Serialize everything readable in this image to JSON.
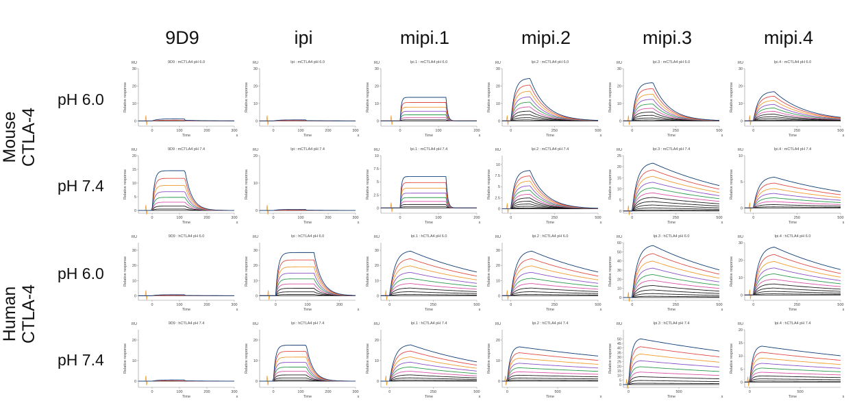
{
  "columns": [
    "9D9",
    "ipi",
    "mipi.1",
    "mipi.2",
    "mipi.3",
    "mipi.4"
  ],
  "groups": [
    {
      "label": "Mouse\nCTLA-4",
      "rows": [
        "pH 6.0",
        "pH 7.4"
      ]
    },
    {
      "label": "Human\nCTLA-4",
      "rows": [
        "pH 6.0",
        "pH 7.4"
      ]
    }
  ],
  "common": {
    "ru_label": "RU",
    "ylabel": "Relative response",
    "xlabel": "Time",
    "xunit": "s"
  },
  "chart_data": [
    {
      "type": "line",
      "title": "9D9 : mCTLA4 pH 6.0",
      "xlim": [
        -50,
        300
      ],
      "xticks": [
        0,
        100,
        200,
        300
      ],
      "ylim": [
        -3,
        30
      ],
      "yticks": [
        0,
        10,
        20,
        30
      ],
      "profile": "flat",
      "amp": 1.2,
      "t_end": 120,
      "n": 2
    },
    {
      "type": "line",
      "title": "Ipi : mCTLA4 pH 6.0",
      "xlim": [
        -50,
        300
      ],
      "xticks": [
        0,
        100,
        200,
        300
      ],
      "ylim": [
        -3,
        30
      ],
      "yticks": [
        0,
        10,
        20,
        30
      ],
      "profile": "flat",
      "amp": 0.6,
      "t_end": 120,
      "n": 2
    },
    {
      "type": "line",
      "title": "Ipi.1 : mCTLA4 pH 6.0",
      "xlim": [
        -50,
        200
      ],
      "xticks": [
        0,
        100,
        200
      ],
      "ylim": [
        -3,
        30
      ],
      "yticks": [
        0,
        10,
        20,
        30
      ],
      "profile": "square",
      "amp": 13.5,
      "t_end": 120,
      "n": 7
    },
    {
      "type": "line",
      "title": "Ipi.2 : mCTLA4 pH 6.0",
      "xlim": [
        -50,
        500
      ],
      "xticks": [
        0,
        250,
        500
      ],
      "ylim": [
        -3,
        30
      ],
      "yticks": [
        0,
        10,
        20,
        30
      ],
      "profile": "fastfall",
      "amp": 24.5,
      "t_end": 110,
      "n": 10
    },
    {
      "type": "line",
      "title": "Ipi.3 : mCTLA4 pH 6.0",
      "xlim": [
        -50,
        500
      ],
      "xticks": [
        0,
        250,
        500
      ],
      "ylim": [
        -3,
        30
      ],
      "yticks": [
        0,
        10,
        20,
        30
      ],
      "profile": "fastfall",
      "amp": 22,
      "t_end": 120,
      "n": 10
    },
    {
      "type": "line",
      "title": "Ipi.4 : mCTLA4 pH 6.0",
      "xlim": [
        -50,
        500
      ],
      "xticks": [
        0,
        250,
        500
      ],
      "ylim": [
        -3,
        30
      ],
      "yticks": [
        0,
        10,
        20,
        30
      ],
      "profile": "medfall",
      "amp": 17,
      "t_end": 120,
      "n": 10
    },
    {
      "type": "line",
      "title": "9D9 : mCTLA4 pH 7.4",
      "xlim": [
        -50,
        300
      ],
      "xticks": [
        0,
        100,
        200,
        300
      ],
      "ylim": [
        -1,
        20
      ],
      "yticks": [
        0,
        5,
        10,
        15,
        20
      ],
      "profile": "square_fall",
      "amp": 14.5,
      "t_end": 120,
      "n": 8
    },
    {
      "type": "line",
      "title": "Ipi : mCTLA4 pH 7.4",
      "xlim": [
        -50,
        300
      ],
      "xticks": [
        0,
        100,
        200,
        300
      ],
      "ylim": [
        -1,
        20
      ],
      "yticks": [
        0,
        10,
        20
      ],
      "profile": "flat",
      "amp": 0.4,
      "t_end": 120,
      "n": 2
    },
    {
      "type": "line",
      "title": "Ipi.1 : mCTLA4 pH 7.4",
      "xlim": [
        -50,
        200
      ],
      "xticks": [
        0,
        100,
        200
      ],
      "ylim": [
        -1,
        10
      ],
      "yticks": [
        0,
        2.5,
        5,
        7.5,
        10
      ],
      "profile": "square",
      "amp": 6,
      "t_end": 120,
      "n": 8
    },
    {
      "type": "line",
      "title": "Ipi.2 : mCTLA4 pH 7.4",
      "xlim": [
        -50,
        500
      ],
      "xticks": [
        0,
        250,
        500
      ],
      "ylim": [
        -1,
        12
      ],
      "yticks": [
        0,
        2.5,
        5,
        7.5,
        10
      ],
      "profile": "fastfall",
      "amp": 8.7,
      "t_end": 110,
      "n": 11
    },
    {
      "type": "line",
      "title": "Ipi.3 : mCTLA4 pH 7.4",
      "xlim": [
        -50,
        500
      ],
      "xticks": [
        0,
        250,
        500
      ],
      "ylim": [
        -1,
        25
      ],
      "yticks": [
        0,
        5,
        10,
        15,
        20,
        25
      ],
      "profile": "slowfall",
      "amp": 22,
      "t_end": 120,
      "n": 11
    },
    {
      "type": "line",
      "title": "Ipi.4 : mCTLA4 pH 7.4",
      "xlim": [
        -50,
        500
      ],
      "xticks": [
        0,
        250,
        500
      ],
      "ylim": [
        -1,
        10
      ],
      "yticks": [
        0,
        5,
        10
      ],
      "profile": "slowfall",
      "amp": 6,
      "t_end": 120,
      "n": 8
    },
    {
      "type": "line",
      "title": "9D9 : hCTLA4 pH 6.0",
      "xlim": [
        -50,
        300
      ],
      "xticks": [
        0,
        100,
        200,
        300
      ],
      "ylim": [
        -3,
        35
      ],
      "yticks": [
        0,
        10,
        20,
        30
      ],
      "profile": "flat",
      "amp": 0.7,
      "t_end": 120,
      "n": 2
    },
    {
      "type": "line",
      "title": "Ipi : hCTLA4 pH 6.0",
      "xlim": [
        -50,
        250
      ],
      "xticks": [
        0,
        100,
        200
      ],
      "ylim": [
        -3,
        35
      ],
      "yticks": [
        0,
        10,
        20,
        30
      ],
      "profile": "square_fall",
      "amp": 28.5,
      "t_end": 120,
      "n": 9
    },
    {
      "type": "line",
      "title": "Ipi.1 : hCTLA4 pH 6.0",
      "xlim": [
        -50,
        500
      ],
      "xticks": [
        0,
        250,
        500
      ],
      "ylim": [
        -3,
        35
      ],
      "yticks": [
        0,
        10,
        20,
        30
      ],
      "profile": "slowfall",
      "amp": 30,
      "t_end": 120,
      "n": 9
    },
    {
      "type": "line",
      "title": "Ipi.2 : hCTLA4 pH 6.0",
      "xlim": [
        -50,
        500
      ],
      "xticks": [
        0,
        250,
        500
      ],
      "ylim": [
        -3,
        35
      ],
      "yticks": [
        0,
        10,
        20,
        30
      ],
      "profile": "slowfall",
      "amp": 30,
      "t_end": 120,
      "n": 9
    },
    {
      "type": "line",
      "title": "Ipi.3 : hCTLA4 pH 6.0",
      "xlim": [
        -50,
        500
      ],
      "xticks": [
        0,
        250,
        500
      ],
      "ylim": [
        -3,
        60
      ],
      "yticks": [
        0,
        10,
        20,
        30,
        40,
        50,
        60
      ],
      "profile": "slowfall",
      "amp": 58,
      "t_end": 120,
      "n": 10
    },
    {
      "type": "line",
      "title": "Ipi.4 : hCTLA4 pH 6.0",
      "xlim": [
        -50,
        500
      ],
      "xticks": [
        0,
        250,
        500
      ],
      "ylim": [
        -3,
        30
      ],
      "yticks": [
        0,
        10,
        20,
        30
      ],
      "profile": "slowfall",
      "amp": 28,
      "t_end": 120,
      "n": 10
    },
    {
      "type": "line",
      "title": "9D9 : hCTLA4 pH 7.4",
      "xlim": [
        -50,
        300
      ],
      "xticks": [
        0,
        100,
        200,
        300
      ],
      "ylim": [
        -3,
        25
      ],
      "yticks": [
        0,
        10,
        20
      ],
      "profile": "flat",
      "amp": 0.6,
      "t_end": 120,
      "n": 2
    },
    {
      "type": "line",
      "title": "Ipi : hCTLA4 pH 7.4",
      "xlim": [
        -50,
        300
      ],
      "xticks": [
        0,
        100,
        200,
        300
      ],
      "ylim": [
        -3,
        25
      ],
      "yticks": [
        0,
        10,
        20
      ],
      "profile": "square_fall",
      "amp": 17.5,
      "t_end": 120,
      "n": 9
    },
    {
      "type": "line",
      "title": "Ipi.1 : hCTLA4 pH 7.4",
      "xlim": [
        -50,
        500
      ],
      "xticks": [
        0,
        250,
        500
      ],
      "ylim": [
        -3,
        25
      ],
      "yticks": [
        0,
        10,
        20
      ],
      "profile": "slowfall",
      "amp": 18,
      "t_end": 120,
      "n": 9
    },
    {
      "type": "line",
      "title": "Ipi.2 : hCTLA4 pH 7.4",
      "xlim": [
        -50,
        900
      ],
      "xticks": [
        0,
        500
      ],
      "ylim": [
        -3,
        25
      ],
      "yticks": [
        0,
        10,
        20
      ],
      "profile": "veryslow",
      "amp": 17,
      "t_end": 120,
      "n": 9
    },
    {
      "type": "line",
      "title": "Ipi.3 : hCTLA4 pH 7.4",
      "xlim": [
        -50,
        900
      ],
      "xticks": [
        0,
        500
      ],
      "ylim": [
        -3,
        60
      ],
      "yticks": [
        0,
        5,
        10,
        15,
        20,
        25,
        30,
        35,
        40,
        45,
        50
      ],
      "profile": "veryslow",
      "amp": 51,
      "t_end": 120,
      "n": 9
    },
    {
      "type": "line",
      "title": "Ipi.4 : hCTLA4 pH 7.4",
      "xlim": [
        -50,
        900
      ],
      "xticks": [
        0,
        500
      ],
      "ylim": [
        -2,
        20
      ],
      "yticks": [
        0,
        5,
        10,
        15,
        20
      ],
      "profile": "veryslow",
      "amp": 14,
      "t_end": 120,
      "n": 9
    }
  ]
}
